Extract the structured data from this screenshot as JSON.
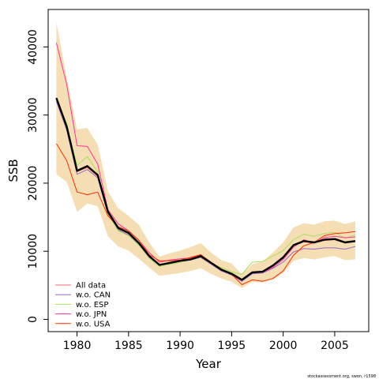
{
  "chart_data": {
    "type": "line",
    "title": "",
    "xlabel": "Year",
    "ylabel": "SSB",
    "xlim": [
      1977.2,
      2008.3
    ],
    "ylim": [
      -1800,
      45500
    ],
    "x_ticks": [
      1980,
      1985,
      1990,
      1995,
      2000,
      2005
    ],
    "y_ticks": [
      0,
      10000,
      20000,
      30000,
      40000
    ],
    "grid": false,
    "legend_position": "bottom-left",
    "footer": "stockassessment.org, swon, r1598",
    "band": {
      "color": "#f5deb3",
      "x": [
        1978,
        1979,
        1980,
        1981,
        1982,
        1983,
        1984,
        1985,
        1986,
        1987,
        1988,
        1989,
        1990,
        1991,
        1992,
        1993,
        1994,
        1995,
        1996,
        1997,
        1998,
        1999,
        2000,
        2001,
        2002,
        2003,
        2004,
        2005,
        2006,
        2007
      ],
      "lower": [
        21300,
        20200,
        15800,
        17000,
        16600,
        12200,
        10700,
        10100,
        8900,
        7600,
        6400,
        6600,
        6800,
        7100,
        7500,
        6700,
        6000,
        5500,
        4600,
        5500,
        5400,
        5800,
        6800,
        8600,
        9000,
        8800,
        9100,
        9300,
        8700,
        8800
      ],
      "upper": [
        43600,
        35500,
        27900,
        28100,
        25700,
        18800,
        16300,
        15200,
        13900,
        11300,
        9200,
        9700,
        10100,
        10600,
        11200,
        9800,
        8700,
        8200,
        6600,
        8100,
        8500,
        9800,
        11300,
        13500,
        14100,
        13900,
        14400,
        14500,
        14000,
        14400
      ]
    },
    "x": [
      1978,
      1979,
      1980,
      1981,
      1982,
      1983,
      1984,
      1985,
      1986,
      1987,
      1988,
      1989,
      1990,
      1991,
      1992,
      1993,
      1994,
      1995,
      1996,
      1997,
      1998,
      1999,
      2000,
      2001,
      2002,
      2003,
      2004,
      2005,
      2006,
      2007
    ],
    "series": [
      {
        "name": "All data",
        "color": "#000000",
        "width": 2.4,
        "in_legend": false,
        "values": [
          32500,
          28300,
          21800,
          22500,
          21200,
          15800,
          13400,
          12700,
          11200,
          9300,
          8000,
          8300,
          8600,
          8800,
          9300,
          8300,
          7300,
          6700,
          5800,
          6900,
          7000,
          7900,
          9100,
          10900,
          11500,
          11300,
          11700,
          11800,
          11300,
          11500
        ]
      },
      {
        "name": "All data",
        "color": "#ff6a6a",
        "width": 1,
        "in_legend": true,
        "values": [
          32300,
          28100,
          21700,
          22300,
          21000,
          15700,
          13300,
          12600,
          11100,
          9200,
          7900,
          8200,
          8500,
          8800,
          9200,
          8200,
          7200,
          6600,
          5700,
          6800,
          6900,
          7800,
          9000,
          10800,
          11400,
          11200,
          11600,
          11700,
          11200,
          11400
        ]
      },
      {
        "name": "w.o. CAN",
        "color": "#9966cc",
        "width": 1,
        "in_legend": true,
        "values": [
          32000,
          27800,
          21300,
          22000,
          20800,
          15500,
          13100,
          12400,
          11000,
          9100,
          7900,
          8100,
          8400,
          8700,
          9100,
          8100,
          7100,
          6500,
          5600,
          6700,
          6800,
          7500,
          8400,
          9900,
          10400,
          10300,
          10500,
          10500,
          10300,
          10700
        ]
      },
      {
        "name": "w.o. ESP",
        "color": "#a8e05a",
        "width": 1,
        "in_legend": true,
        "values": [
          32600,
          28700,
          22600,
          23900,
          21600,
          15400,
          13000,
          12300,
          10900,
          9000,
          7800,
          8100,
          8400,
          8700,
          9200,
          8200,
          7600,
          7000,
          6600,
          8400,
          8500,
          9300,
          10100,
          11700,
          12500,
          12200,
          12600,
          12800,
          11900,
          12400
        ]
      },
      {
        "name": "w.o. JPN",
        "color": "#ff3399",
        "width": 1,
        "in_legend": true,
        "values": [
          40600,
          34500,
          25500,
          25400,
          22800,
          16100,
          14000,
          13000,
          11600,
          9800,
          8400,
          8700,
          8900,
          9000,
          9400,
          8300,
          7300,
          6600,
          5700,
          6900,
          6900,
          7600,
          8800,
          10600,
          11700,
          11200,
          12000,
          12200,
          12000,
          12100
        ]
      },
      {
        "name": "w.o. USA",
        "color": "#ff2a00",
        "width": 1,
        "in_legend": true,
        "values": [
          25800,
          23300,
          18700,
          18300,
          18700,
          15200,
          13600,
          13000,
          11600,
          9500,
          8600,
          8600,
          8700,
          9100,
          9500,
          8400,
          7400,
          6600,
          5100,
          5800,
          5600,
          6000,
          7100,
          9400,
          10800,
          11300,
          12300,
          12600,
          12700,
          12900
        ]
      }
    ]
  }
}
